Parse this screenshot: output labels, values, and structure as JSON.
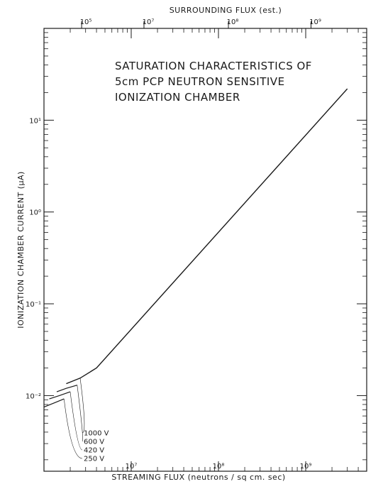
{
  "chart_data": {
    "type": "line",
    "title_lines": [
      "SATURATION CHARACTERISTICS OF",
      "5cm PCP NEUTRON SENSITIVE",
      "IONIZATION CHAMBER"
    ],
    "xlabel": "STREAMING FLUX (neutrons / sq cm. sec)",
    "ylabel": "IONIZATION CHAMBER CURRENT (µA)",
    "top_axis_label": "SURROUNDING FLUX (est.)",
    "x_scale": "log",
    "y_scale": "log",
    "xlim": [
      1000000,
      5000000000
    ],
    "ylim": [
      0.0015,
      100
    ],
    "x_ticks": [
      {
        "value": 10000000,
        "label": "10⁷"
      },
      {
        "value": 100000000,
        "label": "10⁸"
      },
      {
        "value": 1000000000,
        "label": "10⁹"
      }
    ],
    "y_ticks": [
      {
        "value": 0.01,
        "label": "10⁻²"
      },
      {
        "value": 0.1,
        "label": "10⁻¹"
      },
      {
        "value": 1,
        "label": "10⁰"
      },
      {
        "value": 10,
        "label": "10¹"
      }
    ],
    "top_ticks": [
      {
        "value": 2700000,
        "label": "10⁵"
      },
      {
        "value": 14000000,
        "label": "10⁷"
      },
      {
        "value": 130000000,
        "label": "10⁸"
      },
      {
        "value": 1150000000,
        "label": "10⁹"
      }
    ],
    "series": [
      {
        "name": "1000 V",
        "points": [
          [
            1800000,
            0.0135
          ],
          [
            2600000,
            0.0155
          ],
          [
            4000000,
            0.02
          ],
          [
            3000000000,
            22
          ]
        ]
      },
      {
        "name": "600 V",
        "points": [
          [
            1400000,
            0.011
          ],
          [
            1800000,
            0.012
          ],
          [
            2400000,
            0.013
          ]
        ]
      },
      {
        "name": "420 V",
        "points": [
          [
            1150000,
            0.0092
          ],
          [
            1500000,
            0.01
          ],
          [
            2000000,
            0.011
          ]
        ]
      },
      {
        "name": "250 V",
        "points": [
          [
            1000000,
            0.0075
          ],
          [
            1300000,
            0.0083
          ],
          [
            1700000,
            0.0092
          ]
        ]
      }
    ],
    "grid": false
  }
}
